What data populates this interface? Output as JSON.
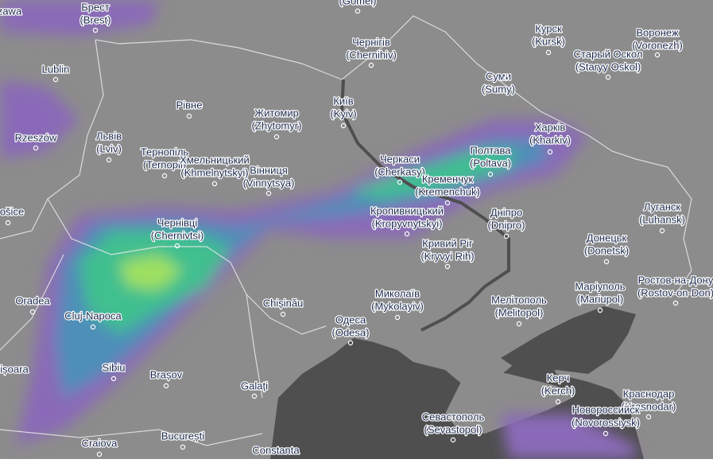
{
  "cities": [
    {
      "name": "zawa"
    },
    {
      "name": "Брест",
      "alt": "(Brest)"
    },
    {
      "alt": "(Gomel)"
    },
    {
      "name": "Чернігів",
      "alt": "(Chernihiv)"
    },
    {
      "name": "Курск",
      "alt": "(Kursk)"
    },
    {
      "name": "Воронеж",
      "alt": "(Voronezh)"
    },
    {
      "name": "Старый Оскол",
      "alt": "(Staryy Oskol)"
    },
    {
      "name": "Lublin"
    },
    {
      "name": "Суми",
      "alt": "(Sumy)"
    },
    {
      "name": "Рівне"
    },
    {
      "name": "Житомир",
      "alt": "(Zhytomyr)"
    },
    {
      "name": "Київ",
      "alt": "(Kyiv)"
    },
    {
      "name": "Rzeszów"
    },
    {
      "name": "Львів",
      "alt": "(Lviv)"
    },
    {
      "name": "Харків",
      "alt": "(Kharkiv)"
    },
    {
      "name": "Тернопіль",
      "alt": "(Ternopil)"
    },
    {
      "name": "Хмельницький",
      "alt": "(Khmelnytskyi)"
    },
    {
      "name": "Вінниця",
      "alt": "(Vinnytsya)"
    },
    {
      "name": "Черкаси",
      "alt": "(Cherkasy)"
    },
    {
      "name": "Полтава",
      "alt": "(Poltava)"
    },
    {
      "name": "Кременчук",
      "alt": "(Kremenchuk)"
    },
    {
      "name": "Кропивницький",
      "alt": "(Kropyvnytskyi)"
    },
    {
      "name": "Дніпро",
      "alt": "(Dnipro)"
    },
    {
      "name": "Луганск",
      "alt": "(Luhansk)"
    },
    {
      "name": "Чернівці",
      "alt": "(Chernivtsi)"
    },
    {
      "name": "ošice"
    },
    {
      "name": "Кривий Ріг",
      "alt": "(Kryvyi Rih)"
    },
    {
      "name": "Донецьк",
      "alt": "(Donetsk)"
    },
    {
      "name": "Oradea"
    },
    {
      "name": "Cluj-Napoca"
    },
    {
      "name": "Chișinău"
    },
    {
      "name": "Миколаїв",
      "alt": "(Mykolayiv)"
    },
    {
      "name": "Мелітополь",
      "alt": "(Melitopol)"
    },
    {
      "name": "Маріуполь",
      "alt": "(Mariupol)"
    },
    {
      "name": "Ростов-на-Дону",
      "alt": "(Rostov-on-Don)"
    },
    {
      "name": "Одеса",
      "alt": "(Odesa)"
    },
    {
      "name": "Sibiu"
    },
    {
      "name": "Brașov"
    },
    {
      "name": "ișoara"
    },
    {
      "name": "Galați"
    },
    {
      "name": "Керч",
      "alt": "(Kerch)"
    },
    {
      "name": "Краснодар",
      "alt": "(Krasnodar)"
    },
    {
      "name": "Новороссийск",
      "alt": "(Novorossiysk)"
    },
    {
      "name": "Севастополь",
      "alt": "(Sevastopol)"
    },
    {
      "name": "Craiova"
    },
    {
      "name": "București"
    },
    {
      "name": "Constanta"
    }
  ]
}
